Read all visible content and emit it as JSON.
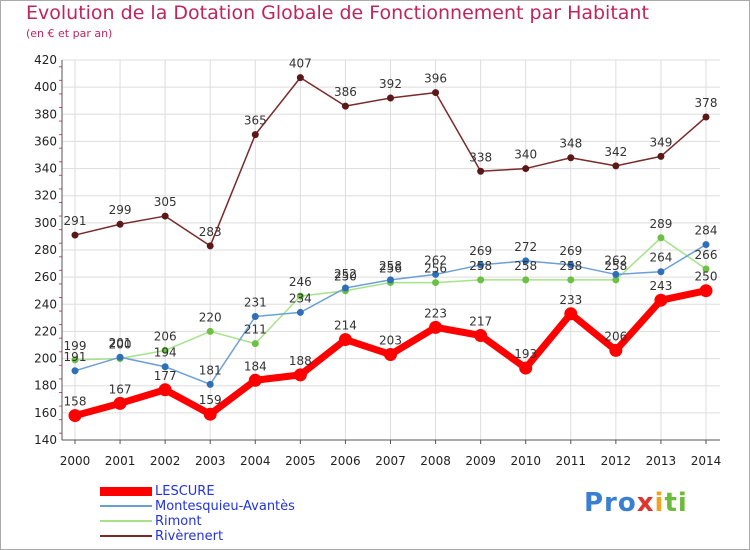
{
  "title": "Evolution de la Dotation Globale de Fonctionnement par Habitant",
  "subtitle": "(en € et par an)",
  "logo": {
    "p1": "Pro",
    "p2": "x",
    "p3": "i",
    "p4": "ti"
  },
  "colors": {
    "title": "#c0245c",
    "axis": "#555555",
    "grid": "#dddddd",
    "legend_text": "#2233dd"
  },
  "chart_data": {
    "type": "line",
    "title": "Evolution de la Dotation Globale de Fonctionnement par Habitant",
    "subtitle": "(en € et par an)",
    "xlabel": "",
    "ylabel": "",
    "grid": true,
    "legend_position": "bottom-left",
    "ylim": [
      140,
      420
    ],
    "y_ticks": [
      "140",
      "160",
      "180",
      "200",
      "220",
      "240",
      "260",
      "280",
      "300",
      "320",
      "340",
      "360",
      "380",
      "400",
      "420"
    ],
    "categories": [
      "2000",
      "2001",
      "2002",
      "2003",
      "2004",
      "2005",
      "2006",
      "2007",
      "2008",
      "2009",
      "2010",
      "2011",
      "2012",
      "2013",
      "2014"
    ],
    "series": [
      {
        "name": "Rivèrenert",
        "color": "#7a2a2a",
        "marker": "#5a1818",
        "thick": false,
        "values": [
          291,
          299,
          305,
          283,
          365,
          407,
          386,
          392,
          396,
          338,
          340,
          348,
          342,
          349,
          378
        ],
        "labels": [
          "291",
          "299",
          "305",
          "283",
          "365",
          "407",
          "386",
          "392",
          "396",
          "338",
          "340",
          "348",
          "342",
          "349",
          "378"
        ]
      },
      {
        "name": "Rimont",
        "color": "#a6e28a",
        "marker": "#6cc044",
        "thick": false,
        "values": [
          199,
          200,
          206,
          220,
          211,
          246,
          250,
          256,
          256,
          258,
          258,
          258,
          258,
          289,
          266
        ],
        "labels": [
          "199",
          "200",
          "206",
          "220",
          "211",
          "246",
          "250",
          "256",
          "256",
          "258",
          "258",
          "258",
          "258",
          "289",
          "266"
        ]
      },
      {
        "name": "Montesquieu-Avantès",
        "color": "#6c9fd6",
        "marker": "#2f6fb8",
        "thick": false,
        "values": [
          191,
          201,
          194,
          181,
          231,
          234,
          252,
          258,
          262,
          269,
          272,
          269,
          262,
          264,
          284
        ],
        "labels": [
          "191",
          "201",
          "194",
          "181",
          "231",
          "234",
          "252",
          "258",
          "262",
          "269",
          "272",
          "269",
          "262",
          "264",
          "284"
        ]
      },
      {
        "name": "LESCURE",
        "color": "#ff0000",
        "marker": "#ee0000",
        "thick": true,
        "values": [
          158,
          167,
          177,
          159,
          184,
          188,
          214,
          203,
          223,
          217,
          193,
          233,
          206,
          243,
          250
        ],
        "labels": [
          "158",
          "167",
          "177",
          "159",
          "184",
          "188",
          "214",
          "203",
          "223",
          "217",
          "193",
          "233",
          "206",
          "243",
          "250"
        ]
      }
    ]
  },
  "legend": [
    {
      "label": "LESCURE",
      "color": "#ff0000",
      "thick": true
    },
    {
      "label": "Montesquieu-Avantès",
      "color": "#6c9fd6",
      "thick": false
    },
    {
      "label": "Rimont",
      "color": "#a6e28a",
      "thick": false
    },
    {
      "label": "Rivèrenert",
      "color": "#7a2a2a",
      "thick": false
    }
  ]
}
